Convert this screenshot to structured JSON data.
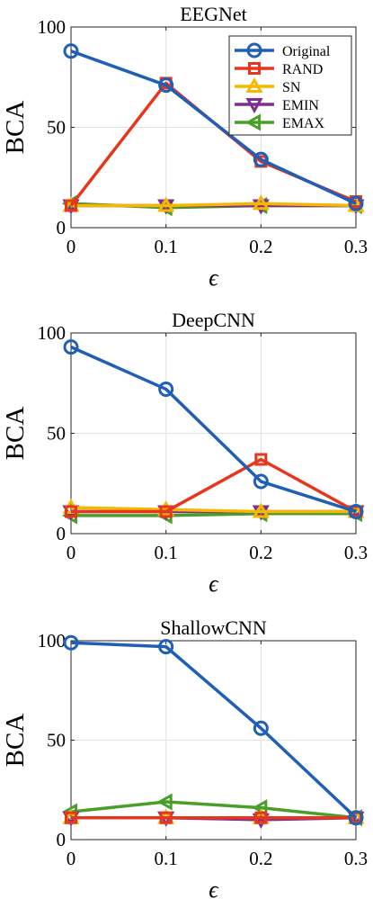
{
  "colors": {
    "Original": "#1f5fb5",
    "RAND": "#e8361c",
    "SN": "#f5b800",
    "EMIN": "#7e2f8e",
    "EMAX": "#4a9e2a"
  },
  "chart_data": [
    {
      "type": "line",
      "title": "EEGNet",
      "xlabel": "ϵ",
      "ylabel": "BCA",
      "x": [
        0,
        0.1,
        0.2,
        0.3
      ],
      "x_tick_labels": [
        "0",
        "0.1",
        "0.2",
        "0.3"
      ],
      "y_tick_labels": [
        "0",
        "50",
        "100"
      ],
      "xlim": [
        0,
        0.3
      ],
      "ylim": [
        0,
        100
      ],
      "grid": true,
      "legend": "top-right",
      "series": [
        {
          "name": "Original",
          "marker": "circle",
          "values": [
            88,
            71,
            34,
            12
          ]
        },
        {
          "name": "RAND",
          "marker": "square",
          "values": [
            11,
            72,
            33,
            13
          ]
        },
        {
          "name": "SN",
          "marker": "triangle-up",
          "values": [
            11,
            11,
            12,
            11
          ]
        },
        {
          "name": "EMIN",
          "marker": "triangle-down",
          "values": [
            11,
            11,
            11,
            11
          ]
        },
        {
          "name": "EMAX",
          "marker": "triangle-left",
          "values": [
            12,
            10,
            11,
            11
          ]
        }
      ]
    },
    {
      "type": "line",
      "title": "DeepCNN",
      "xlabel": "ϵ",
      "ylabel": "BCA",
      "x": [
        0,
        0.1,
        0.2,
        0.3
      ],
      "x_tick_labels": [
        "0",
        "0.1",
        "0.2",
        "0.3"
      ],
      "y_tick_labels": [
        "0",
        "50",
        "100"
      ],
      "xlim": [
        0,
        0.3
      ],
      "ylim": [
        0,
        100
      ],
      "grid": true,
      "series": [
        {
          "name": "Original",
          "marker": "circle",
          "values": [
            93,
            72,
            26,
            11
          ]
        },
        {
          "name": "RAND",
          "marker": "square",
          "values": [
            11,
            11,
            37,
            11
          ]
        },
        {
          "name": "SN",
          "marker": "triangle-up",
          "values": [
            13,
            12,
            11,
            11
          ]
        },
        {
          "name": "EMIN",
          "marker": "triangle-down",
          "values": [
            11,
            11,
            11,
            11
          ]
        },
        {
          "name": "EMAX",
          "marker": "triangle-left",
          "values": [
            9,
            9,
            10,
            10
          ]
        }
      ]
    },
    {
      "type": "line",
      "title": "ShallowCNN",
      "xlabel": "ϵ",
      "ylabel": "BCA",
      "x": [
        0,
        0.1,
        0.2,
        0.3
      ],
      "x_tick_labels": [
        "0",
        "0.1",
        "0.2",
        "0.3"
      ],
      "y_tick_labels": [
        "0",
        "50",
        "100"
      ],
      "xlim": [
        0,
        0.3
      ],
      "ylim": [
        0,
        100
      ],
      "grid": true,
      "series": [
        {
          "name": "Original",
          "marker": "circle",
          "values": [
            99,
            97,
            56,
            11
          ]
        },
        {
          "name": "RAND",
          "marker": "square",
          "values": [
            11,
            11,
            11,
            11
          ]
        },
        {
          "name": "SN",
          "marker": "triangle-up",
          "values": [
            11,
            11,
            11,
            11
          ]
        },
        {
          "name": "EMIN",
          "marker": "triangle-down",
          "values": [
            11,
            11,
            10,
            11
          ]
        },
        {
          "name": "EMAX",
          "marker": "triangle-left",
          "values": [
            14,
            19,
            16,
            11
          ]
        }
      ]
    }
  ]
}
